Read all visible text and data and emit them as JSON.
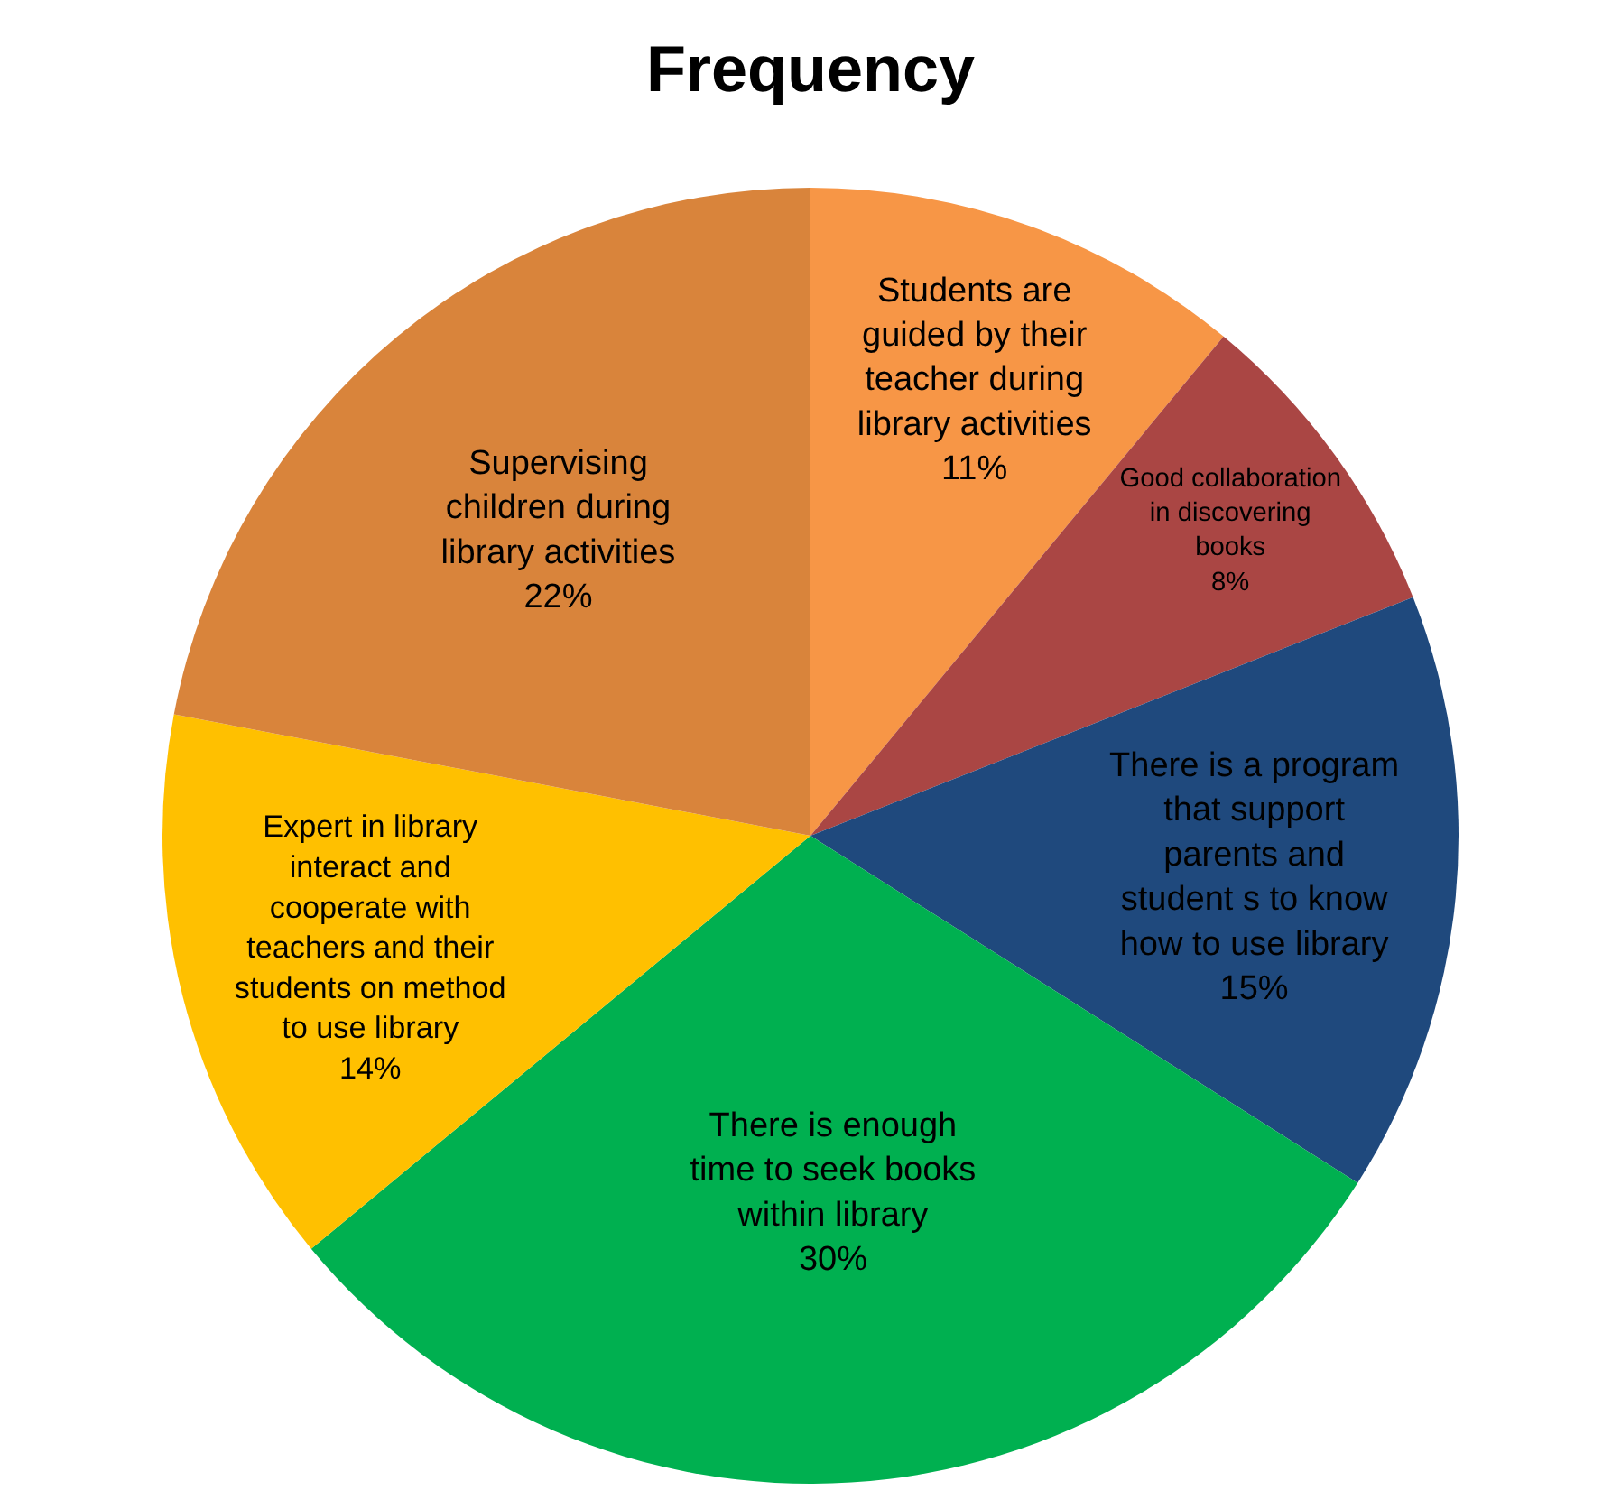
{
  "chart_data": {
    "type": "pie",
    "title": "Frequency",
    "categories": [
      "Students are guided by their teacher during library activities",
      "Good collaboration in discovering books",
      "There is a program that support parents and student s to know how to use library",
      "There is enough time to seek books within library",
      "Expert in library interact and cooperate with teachers and their students on method to use library",
      "Supervising children during library activities"
    ],
    "values": [
      11,
      8,
      15,
      30,
      14,
      22
    ],
    "value_labels": [
      "11%",
      "8%",
      "15%",
      "30%",
      "14%",
      "22%"
    ],
    "colors": [
      "#f79646",
      "#aa4644",
      "#1f497d",
      "#00b050",
      "#ffc000",
      "#d9843b"
    ],
    "legend": false
  }
}
